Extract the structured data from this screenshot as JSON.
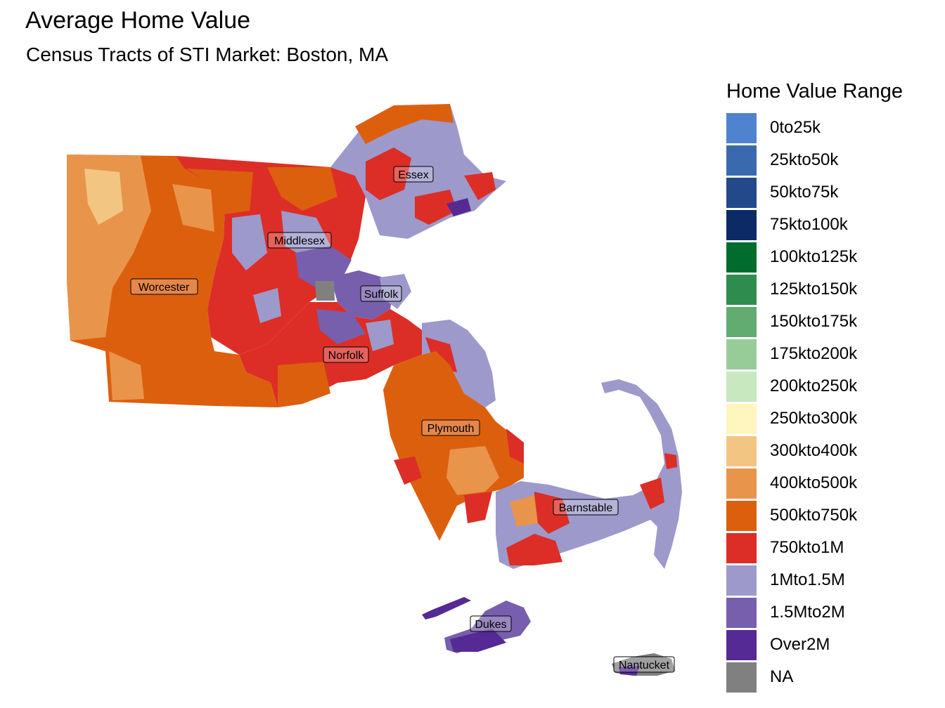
{
  "header": {
    "title": "Average Home Value",
    "subtitle": "Census Tracts of STI Market: Boston, MA"
  },
  "legend": {
    "title": "Home Value Range",
    "items": [
      {
        "label": "0to25k",
        "color": "#5083cf"
      },
      {
        "label": "25kto50k",
        "color": "#3a6aad"
      },
      {
        "label": "50kto75k",
        "color": "#24498a"
      },
      {
        "label": "75kto100k",
        "color": "#0c2b66"
      },
      {
        "label": "100kto125k",
        "color": "#006c2e"
      },
      {
        "label": "125kto150k",
        "color": "#2f8c4f"
      },
      {
        "label": "150kto175k",
        "color": "#62ac72"
      },
      {
        "label": "175kto200k",
        "color": "#97cc99"
      },
      {
        "label": "200kto250k",
        "color": "#c8e8c0"
      },
      {
        "label": "250kto300k",
        "color": "#fff5bf"
      },
      {
        "label": "300kto400k",
        "color": "#f3c583"
      },
      {
        "label": "400kto500k",
        "color": "#e9944b"
      },
      {
        "label": "500kto750k",
        "color": "#dc5f0e"
      },
      {
        "label": "750kto1M",
        "color": "#dc2e26"
      },
      {
        "label": "1Mto1.5M",
        "color": "#9d99cb"
      },
      {
        "label": "1.5Mto2M",
        "color": "#775fad"
      },
      {
        "label": "Over2M",
        "color": "#552a94"
      },
      {
        "label": "NA",
        "color": "#808080"
      }
    ]
  },
  "map": {
    "counties": [
      {
        "name": "Essex",
        "dominant_range": "1Mto1.5M"
      },
      {
        "name": "Middlesex",
        "dominant_range": "750kto1M"
      },
      {
        "name": "Worcester",
        "dominant_range": "500kto750k"
      },
      {
        "name": "Suffolk",
        "dominant_range": "1.5Mto2M"
      },
      {
        "name": "Norfolk",
        "dominant_range": "750kto1M"
      },
      {
        "name": "Plymouth",
        "dominant_range": "500kto750k"
      },
      {
        "name": "Barnstable",
        "dominant_range": "1Mto1.5M"
      },
      {
        "name": "Dukes",
        "dominant_range": "Over2M"
      },
      {
        "name": "Nantucket",
        "dominant_range": "NA"
      }
    ]
  }
}
